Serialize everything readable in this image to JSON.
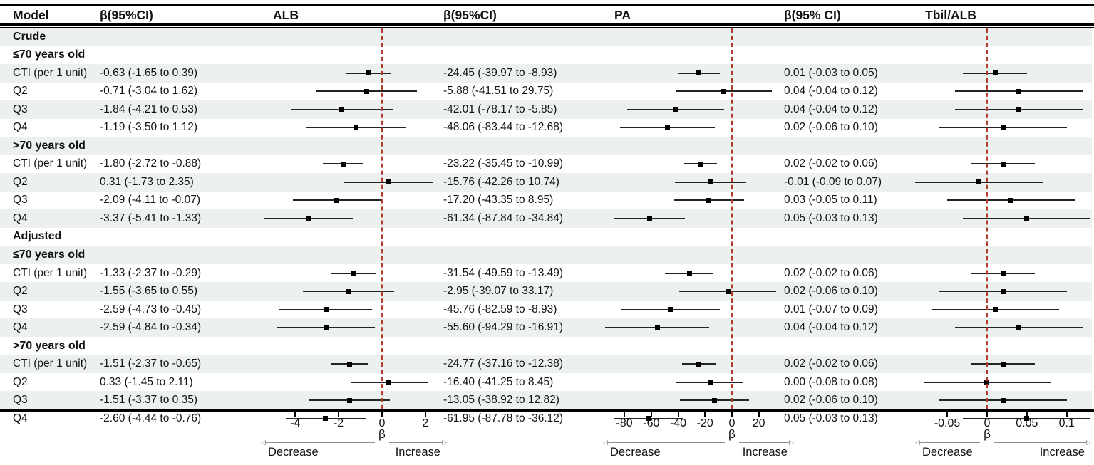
{
  "chart_data": {
    "type": "scatter",
    "variant": "forest-plot",
    "header": {
      "model": "Model",
      "beta1": "β(95%CI)",
      "panel1": "ALB",
      "beta2": "β(95%CI)",
      "panel2": "PA",
      "beta3": "β(95% CI)",
      "panel3": "Tbil/ALB"
    },
    "colors": {
      "stripe": "#ecf0ef",
      "reference_line": "#b23a2e",
      "marker": "#000000",
      "ci_line": "#232323",
      "arrow_line": "#8f8f8f"
    },
    "panels": [
      {
        "key": "alb",
        "title": "ALB",
        "axis_ticks": [
          -4,
          -2,
          0,
          2
        ],
        "tick_labels": [
          "-4",
          "-2",
          "0",
          "2"
        ],
        "axis_domain": [
          -5.72,
          2.7
        ],
        "reference_value": 0,
        "beta_symbol": "β",
        "decrease_label": "Decrease",
        "increase_label": "Increase"
      },
      {
        "key": "pa",
        "title": "PA",
        "axis_ticks": [
          -80,
          -60,
          -40,
          -20,
          0,
          20
        ],
        "tick_labels": [
          "-80",
          "-60",
          "-40",
          "-20",
          "0",
          "20"
        ],
        "axis_domain": [
          -96.5,
          36.1
        ],
        "reference_value": 0,
        "beta_symbol": "β",
        "decrease_label": "Decrease",
        "increase_label": "Increase"
      },
      {
        "key": "tbil",
        "title": "Tbil/ALB",
        "axis_ticks": [
          -0.05,
          0,
          0.05,
          0.1
        ],
        "tick_labels": [
          "-0.05",
          "0",
          "0.05",
          "0.1"
        ],
        "axis_domain": [
          -0.1073,
          0.1324
        ],
        "reference_value": 0,
        "beta_symbol": "β",
        "decrease_label": "Decrease",
        "increase_label": "Increase"
      }
    ],
    "rows": [
      {
        "kind": "section",
        "label": "Crude"
      },
      {
        "kind": "section",
        "label": "≤70 years old"
      },
      {
        "kind": "data",
        "label": "CTI (per 1 unit)",
        "alb": {
          "text": "-0.63 (-1.65 to 0.39)",
          "est": -0.63,
          "lo": -1.65,
          "hi": 0.39
        },
        "pa": {
          "text": "-24.45 (-39.97 to -8.93)",
          "est": -24.45,
          "lo": -39.97,
          "hi": -8.93
        },
        "tbil": {
          "text": "0.01 (-0.03 to 0.05)",
          "est": 0.01,
          "lo": -0.03,
          "hi": 0.05
        }
      },
      {
        "kind": "data",
        "label": "Q2",
        "alb": {
          "text": "-0.71 (-3.04 to 1.62)",
          "est": -0.71,
          "lo": -3.04,
          "hi": 1.62
        },
        "pa": {
          "text": "-5.88 (-41.51 to 29.75)",
          "est": -5.88,
          "lo": -41.51,
          "hi": 29.75
        },
        "tbil": {
          "text": "0.04 (-0.04 to 0.12)",
          "est": 0.04,
          "lo": -0.04,
          "hi": 0.12
        }
      },
      {
        "kind": "data",
        "label": "Q3",
        "alb": {
          "text": "-1.84 (-4.21 to 0.53)",
          "est": -1.84,
          "lo": -4.21,
          "hi": 0.53
        },
        "pa": {
          "text": "-42.01 (-78.17 to -5.85)",
          "est": -42.01,
          "lo": -78.17,
          "hi": -5.85
        },
        "tbil": {
          "text": "0.04 (-0.04 to 0.12)",
          "est": 0.04,
          "lo": -0.04,
          "hi": 0.12
        }
      },
      {
        "kind": "data",
        "label": "Q4",
        "alb": {
          "text": "-1.19 (-3.50 to 1.12)",
          "est": -1.19,
          "lo": -3.5,
          "hi": 1.12
        },
        "pa": {
          "text": "-48.06 (-83.44 to -12.68)",
          "est": -48.06,
          "lo": -83.44,
          "hi": -12.68
        },
        "tbil": {
          "text": "0.02 (-0.06 to 0.10)",
          "est": 0.02,
          "lo": -0.06,
          "hi": 0.1
        }
      },
      {
        "kind": "section",
        "label": ">70 years old"
      },
      {
        "kind": "data",
        "label": "CTI (per 1 unit)",
        "alb": {
          "text": "-1.80 (-2.72 to -0.88)",
          "est": -1.8,
          "lo": -2.72,
          "hi": -0.88
        },
        "pa": {
          "text": "-23.22 (-35.45 to -10.99)",
          "est": -23.22,
          "lo": -35.45,
          "hi": -10.99
        },
        "tbil": {
          "text": "0.02 (-0.02 to 0.06)",
          "est": 0.02,
          "lo": -0.02,
          "hi": 0.06
        }
      },
      {
        "kind": "data",
        "label": "Q2",
        "alb": {
          "text": "0.31 (-1.73 to 2.35)",
          "est": 0.31,
          "lo": -1.73,
          "hi": 2.35
        },
        "pa": {
          "text": "-15.76 (-42.26 to 10.74)",
          "est": -15.76,
          "lo": -42.26,
          "hi": 10.74
        },
        "tbil": {
          "text": "-0.01 (-0.09 to 0.07)",
          "est": -0.01,
          "lo": -0.09,
          "hi": 0.07
        }
      },
      {
        "kind": "data",
        "label": "Q3",
        "alb": {
          "text": "-2.09 (-4.11 to -0.07)",
          "est": -2.09,
          "lo": -4.11,
          "hi": -0.07
        },
        "pa": {
          "text": "-17.20 (-43.35 to 8.95)",
          "est": -17.2,
          "lo": -43.35,
          "hi": 8.95
        },
        "tbil": {
          "text": "0.03 (-0.05 to 0.11)",
          "est": 0.03,
          "lo": -0.05,
          "hi": 0.11
        }
      },
      {
        "kind": "data",
        "label": "Q4",
        "alb": {
          "text": "-3.37 (-5.41 to -1.33)",
          "est": -3.37,
          "lo": -5.41,
          "hi": -1.33
        },
        "pa": {
          "text": "-61.34 (-87.84 to -34.84)",
          "est": -61.34,
          "lo": -87.84,
          "hi": -34.84
        },
        "tbil": {
          "text": "0.05 (-0.03 to 0.13)",
          "est": 0.05,
          "lo": -0.03,
          "hi": 0.13
        }
      },
      {
        "kind": "section",
        "label": "Adjusted"
      },
      {
        "kind": "section",
        "label": "≤70 years old"
      },
      {
        "kind": "data",
        "label": "CTI (per 1 unit)",
        "alb": {
          "text": "-1.33 (-2.37 to -0.29)",
          "est": -1.33,
          "lo": -2.37,
          "hi": -0.29
        },
        "pa": {
          "text": "-31.54 (-49.59 to -13.49)",
          "est": -31.54,
          "lo": -49.59,
          "hi": -13.49
        },
        "tbil": {
          "text": "0.02 (-0.02 to 0.06)",
          "est": 0.02,
          "lo": -0.02,
          "hi": 0.06
        }
      },
      {
        "kind": "data",
        "label": "Q2",
        "alb": {
          "text": "-1.55 (-3.65 to 0.55)",
          "est": -1.55,
          "lo": -3.65,
          "hi": 0.55
        },
        "pa": {
          "text": "-2.95 (-39.07 to 33.17)",
          "est": -2.95,
          "lo": -39.07,
          "hi": 33.17
        },
        "tbil": {
          "text": "0.02 (-0.06 to 0.10)",
          "est": 0.02,
          "lo": -0.06,
          "hi": 0.1
        }
      },
      {
        "kind": "data",
        "label": "Q3",
        "alb": {
          "text": "-2.59 (-4.73 to -0.45)",
          "est": -2.59,
          "lo": -4.73,
          "hi": -0.45
        },
        "pa": {
          "text": "-45.76 (-82.59 to -8.93)",
          "est": -45.76,
          "lo": -82.59,
          "hi": -8.93
        },
        "tbil": {
          "text": "0.01 (-0.07 to 0.09)",
          "est": 0.01,
          "lo": -0.07,
          "hi": 0.09
        }
      },
      {
        "kind": "data",
        "label": "Q4",
        "alb": {
          "text": "-2.59 (-4.84 to -0.34)",
          "est": -2.59,
          "lo": -4.84,
          "hi": -0.34
        },
        "pa": {
          "text": "-55.60 (-94.29 to -16.91)",
          "est": -55.6,
          "lo": -94.29,
          "hi": -16.91
        },
        "tbil": {
          "text": "0.04 (-0.04 to 0.12)",
          "est": 0.04,
          "lo": -0.04,
          "hi": 0.12
        }
      },
      {
        "kind": "section",
        "label": ">70 years old"
      },
      {
        "kind": "data",
        "label": "CTI (per 1 unit)",
        "alb": {
          "text": "-1.51 (-2.37 to -0.65)",
          "est": -1.51,
          "lo": -2.37,
          "hi": -0.65
        },
        "pa": {
          "text": "-24.77 (-37.16 to -12.38)",
          "est": -24.77,
          "lo": -37.16,
          "hi": -12.38
        },
        "tbil": {
          "text": "0.02 (-0.02 to 0.06)",
          "est": 0.02,
          "lo": -0.02,
          "hi": 0.06
        }
      },
      {
        "kind": "data",
        "label": "Q2",
        "alb": {
          "text": "0.33 (-1.45 to 2.11)",
          "est": 0.33,
          "lo": -1.45,
          "hi": 2.11
        },
        "pa": {
          "text": "-16.40 (-41.25 to 8.45)",
          "est": -16.4,
          "lo": -41.25,
          "hi": 8.45
        },
        "tbil": {
          "text": "0.00 (-0.08 to 0.08)",
          "est": 0.0,
          "lo": -0.08,
          "hi": 0.08
        }
      },
      {
        "kind": "data",
        "label": "Q3",
        "alb": {
          "text": "-1.51 (-3.37 to 0.35)",
          "est": -1.51,
          "lo": -3.37,
          "hi": 0.35
        },
        "pa": {
          "text": "-13.05 (-38.92 to 12.82)",
          "est": -13.05,
          "lo": -38.92,
          "hi": 12.82
        },
        "tbil": {
          "text": "0.02 (-0.06 to 0.10)",
          "est": 0.02,
          "lo": -0.06,
          "hi": 0.1
        }
      },
      {
        "kind": "data",
        "label": "Q4",
        "alb": {
          "text": "-2.60 (-4.44 to -0.76)",
          "est": -2.6,
          "lo": -4.44,
          "hi": -0.76
        },
        "pa": {
          "text": "-61.95 (-87.78 to -36.12)",
          "est": -61.95,
          "lo": -87.78,
          "hi": -36.12
        },
        "tbil": {
          "text": "0.05 (-0.03 to 0.13)",
          "est": 0.05,
          "lo": -0.03,
          "hi": 0.13
        }
      }
    ]
  }
}
